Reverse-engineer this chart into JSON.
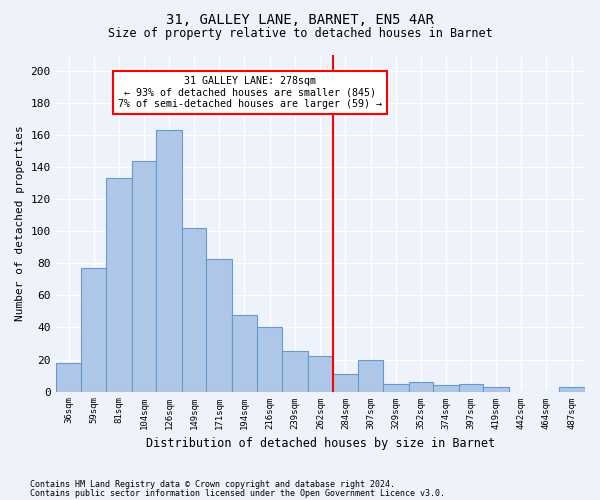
{
  "title1": "31, GALLEY LANE, BARNET, EN5 4AR",
  "title2": "Size of property relative to detached houses in Barnet",
  "xlabel": "Distribution of detached houses by size in Barnet",
  "ylabel": "Number of detached properties",
  "footnote1": "Contains HM Land Registry data © Crown copyright and database right 2024.",
  "footnote2": "Contains public sector information licensed under the Open Government Licence v3.0.",
  "bar_labels": [
    "36sqm",
    "59sqm",
    "81sqm",
    "104sqm",
    "126sqm",
    "149sqm",
    "171sqm",
    "194sqm",
    "216sqm",
    "239sqm",
    "262sqm",
    "284sqm",
    "307sqm",
    "329sqm",
    "352sqm",
    "374sqm",
    "397sqm",
    "419sqm",
    "442sqm",
    "464sqm",
    "487sqm"
  ],
  "bar_values": [
    18,
    77,
    133,
    144,
    163,
    102,
    83,
    48,
    40,
    25,
    22,
    11,
    20,
    5,
    6,
    4,
    5,
    3,
    0,
    0,
    3
  ],
  "bar_color": "#aec6e8",
  "bar_edge_color": "#6699cc",
  "annotation_line1": "31 GALLEY LANE: 278sqm",
  "annotation_line2": "← 93% of detached houses are smaller (845)",
  "annotation_line3": "7% of semi-detached houses are larger (59) →",
  "annotation_box_color": "white",
  "annotation_box_edge_color": "red",
  "vline_color": "red",
  "background_color": "#eef2fb",
  "ylim": [
    0,
    210
  ],
  "yticks": [
    0,
    20,
    40,
    60,
    80,
    100,
    120,
    140,
    160,
    180,
    200
  ],
  "bin_edges": [
    36,
    59,
    81,
    104,
    126,
    149,
    171,
    194,
    216,
    239,
    262,
    284,
    307,
    329,
    352,
    374,
    397,
    419,
    442,
    464,
    487,
    510
  ],
  "vline_pos": 284
}
